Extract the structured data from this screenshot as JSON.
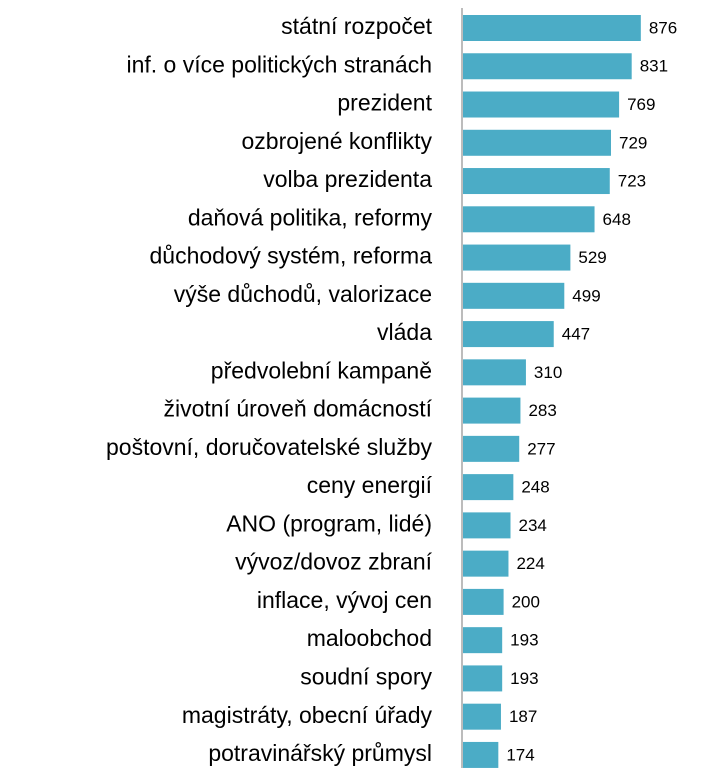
{
  "chart_data": {
    "type": "barh",
    "categories": [
      "státní rozpočet",
      "inf. o více politických stranách",
      "prezident",
      "ozbrojené konflikty",
      "volba prezidenta",
      "daňová politika, reformy",
      "důchodový systém, reforma",
      "výše důchodů, valorizace",
      "vláda",
      "předvolební kampaně",
      "životní úroveň domácností",
      "poštovní, doručovatelské služby",
      "ceny energií",
      "ANO (program, lidé)",
      "vývoz/dovoz zbraní",
      "inflace, vývoj cen",
      "maloobchod",
      "soudní spory",
      "magistráty, obecní úřady",
      "potravinářský průmysl"
    ],
    "values": [
      876,
      831,
      769,
      729,
      723,
      648,
      529,
      499,
      447,
      310,
      283,
      277,
      248,
      234,
      224,
      200,
      193,
      193,
      187,
      174
    ],
    "color": "#4bacc6",
    "xlim": [
      0,
      1000
    ]
  }
}
